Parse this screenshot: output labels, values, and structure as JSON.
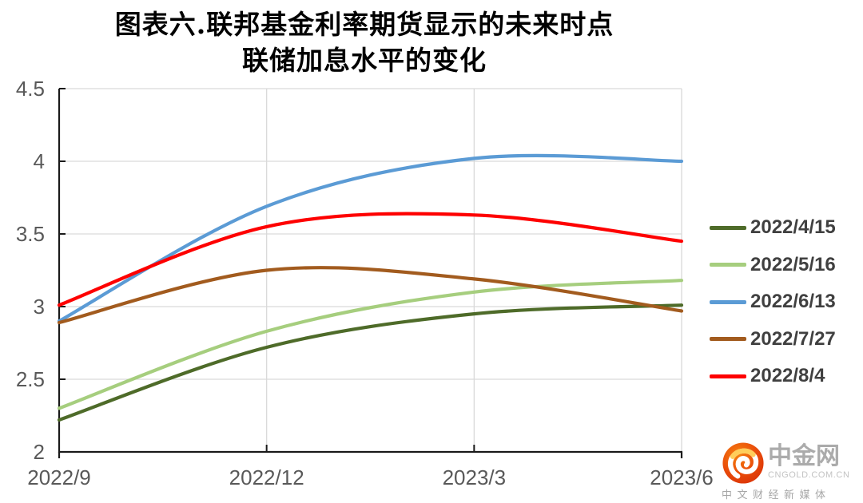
{
  "title": {
    "line1": "图表六.联邦基金利率期货显示的未来时点",
    "line2": "联储加息水平的变化"
  },
  "chart_data": {
    "type": "line",
    "categories": [
      "2022/9",
      "2022/12",
      "2023/3",
      "2023/6"
    ],
    "series": [
      {
        "name": "2022/4/15",
        "color": "#4E6B29",
        "values": [
          2.22,
          2.72,
          2.95,
          3.01
        ]
      },
      {
        "name": "2022/5/16",
        "color": "#A6CE7E",
        "values": [
          2.3,
          2.83,
          3.1,
          3.18
        ]
      },
      {
        "name": "2022/6/13",
        "color": "#5B9BD5",
        "values": [
          2.9,
          3.69,
          4.02,
          4.0
        ]
      },
      {
        "name": "2022/7/27",
        "color": "#A25B1E",
        "values": [
          2.89,
          3.25,
          3.19,
          2.97
        ]
      },
      {
        "name": "2022/8/4",
        "color": "#FE0000",
        "values": [
          3.01,
          3.55,
          3.63,
          3.45
        ]
      }
    ],
    "ylim": [
      2,
      4.5
    ],
    "ytick_step": 0.5,
    "ytick_labels": [
      "2",
      "2.5",
      "3",
      "3.5",
      "4",
      "4.5"
    ],
    "grid": true,
    "legend_position": "right",
    "line_smoothing": true
  },
  "watermark": {
    "brand": "中金网",
    "domain": "CNGOLD.COM.CN",
    "tagline": "中文财经新媒体"
  },
  "colors": {
    "axis": "#1a1a1a",
    "grid": "#D9D9D9",
    "tick_label": "#595959",
    "legend_text": "#404040",
    "logo_orange": "#E8420B",
    "logo_orange_light": "#F5820F",
    "logo_swirl": "#FFFFFF",
    "logo_swirl_accent": "#FFC53D"
  }
}
